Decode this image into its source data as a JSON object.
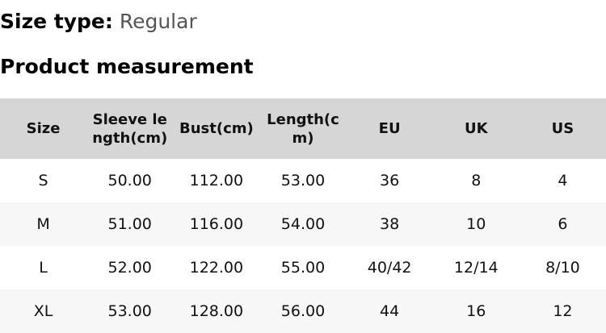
{
  "size_type": {
    "label": "Size type:",
    "value": "Regular"
  },
  "heading": "Product measurement",
  "table": {
    "headers": [
      "Size",
      "Sleeve length(cm)",
      "Bust(cm)",
      "Length(cm)",
      "EU",
      "UK",
      "US"
    ],
    "rows": [
      [
        "S",
        "50.00",
        "112.00",
        "53.00",
        "36",
        "8",
        "4"
      ],
      [
        "M",
        "51.00",
        "116.00",
        "54.00",
        "38",
        "10",
        "6"
      ],
      [
        "L",
        "52.00",
        "122.00",
        "55.00",
        "40/42",
        "12/14",
        "8/10"
      ],
      [
        "XL",
        "53.00",
        "128.00",
        "56.00",
        "44",
        "16",
        "12"
      ]
    ]
  }
}
